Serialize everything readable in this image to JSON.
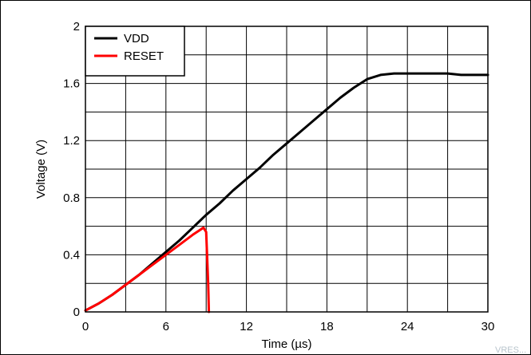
{
  "chart_data": {
    "type": "line",
    "title": "",
    "xlabel": "Time (µs)",
    "ylabel": "Voltage (V)",
    "xlim": [
      0,
      30
    ],
    "ylim": [
      0,
      2
    ],
    "x_ticks": [
      0,
      6,
      12,
      18,
      24,
      30
    ],
    "y_ticks": [
      0,
      0.4,
      0.8,
      1.2,
      1.6,
      2
    ],
    "x_tick_labels": [
      "0",
      "6",
      "12",
      "18",
      "24",
      "30"
    ],
    "y_tick_labels": [
      "0",
      "0.4",
      "0.8",
      "1.2",
      "1.6",
      "2"
    ],
    "grid": true,
    "legend_position": "top-left",
    "series": [
      {
        "name": "VDD",
        "color": "#000000",
        "x": [
          0,
          1,
          2,
          3,
          4,
          5,
          6,
          7,
          8,
          9,
          10,
          11,
          12,
          13,
          14,
          15,
          16,
          17,
          18,
          19,
          20,
          21,
          22,
          23,
          24,
          25,
          26,
          27,
          28,
          29,
          30
        ],
        "y": [
          0.01,
          0.06,
          0.12,
          0.19,
          0.26,
          0.34,
          0.42,
          0.5,
          0.59,
          0.68,
          0.76,
          0.85,
          0.93,
          1.01,
          1.1,
          1.18,
          1.26,
          1.34,
          1.42,
          1.5,
          1.57,
          1.63,
          1.66,
          1.67,
          1.67,
          1.67,
          1.67,
          1.67,
          1.66,
          1.66,
          1.66
        ]
      },
      {
        "name": "RESET",
        "color": "#ff0000",
        "x": [
          0,
          1,
          2,
          3,
          4,
          5,
          6,
          7,
          8,
          8.8,
          9.0,
          9.15,
          9.2
        ],
        "y": [
          0.01,
          0.06,
          0.12,
          0.19,
          0.26,
          0.33,
          0.4,
          0.47,
          0.54,
          0.59,
          0.56,
          0.2,
          0.0
        ]
      }
    ],
    "watermark": "VRES..."
  }
}
